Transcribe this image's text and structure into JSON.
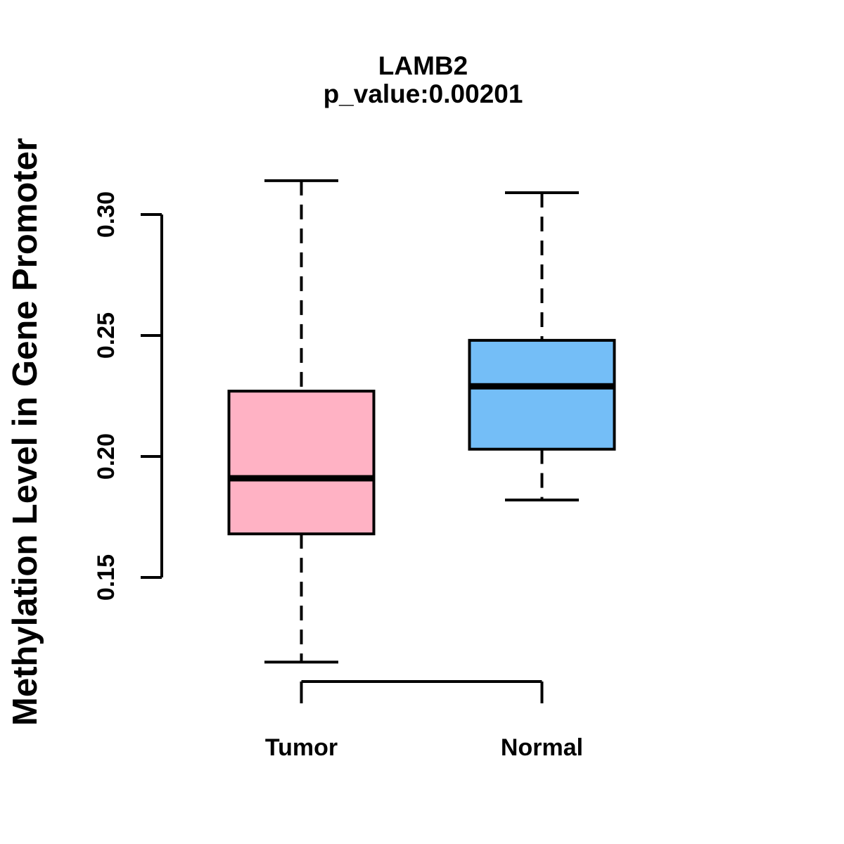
{
  "chart_data": {
    "type": "boxplot",
    "title": "LAMB2",
    "subtitle": "p_value:0.00201",
    "xlabel": "",
    "ylabel": "Methylation Level in Gene Promoter",
    "categories": [
      "Tumor",
      "Normal"
    ],
    "series": [
      {
        "name": "Tumor",
        "fill_color": "#FFB2C4",
        "whisker_low": 0.115,
        "q1": 0.168,
        "median": 0.191,
        "q3": 0.227,
        "whisker_high": 0.314,
        "outliers": []
      },
      {
        "name": "Normal",
        "fill_color": "#74BEF7",
        "whisker_low": 0.182,
        "q1": 0.203,
        "median": 0.229,
        "q3": 0.248,
        "whisker_high": 0.309,
        "outliers": []
      }
    ],
    "y_axis": {
      "ticks": [
        0.15,
        0.2,
        0.25,
        0.3
      ],
      "tick_labels": [
        "0.15",
        "0.20",
        "0.25",
        "0.30"
      ],
      "axis_range": [
        0.15,
        0.3
      ]
    },
    "grid": false,
    "legend": "none",
    "stroke_color": "#000000",
    "background_color": "#FFFFFF"
  }
}
